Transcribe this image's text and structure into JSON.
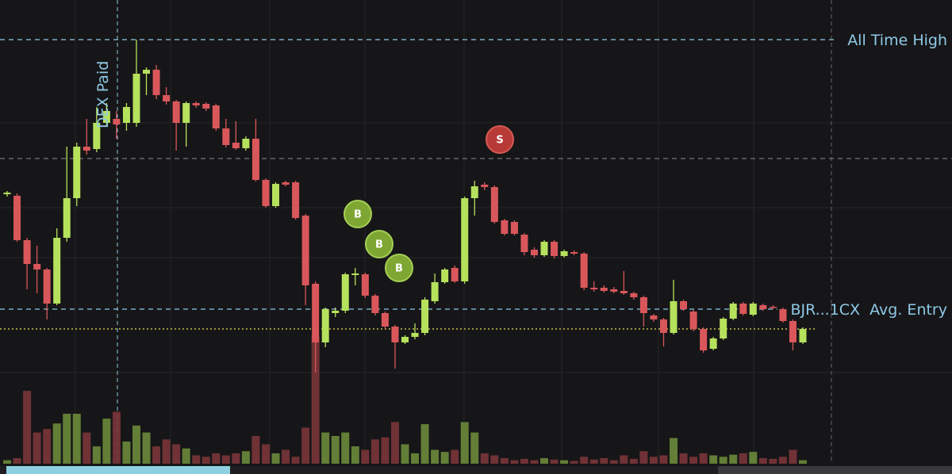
{
  "chart_data": {
    "type": "candlestick",
    "open": [
      225,
      223,
      167,
      137,
      130,
      87,
      170,
      220,
      285,
      282,
      315,
      320,
      315,
      315,
      377,
      382,
      350,
      342,
      315,
      340,
      339,
      337,
      308,
      290,
      283,
      295,
      243,
      210,
      240,
      240,
      198,
      112,
      38,
      75,
      78,
      123,
      124,
      97,
      75,
      58,
      38,
      45,
      50,
      90,
      114,
      132,
      115,
      220,
      237,
      234,
      192,
      190,
      174,
      155,
      148,
      165,
      147,
      152,
      150,
      107,
      107,
      105,
      103,
      100,
      95,
      72,
      67,
      50,
      90,
      77,
      55,
      30,
      43,
      68,
      87,
      73,
      85,
      83,
      80,
      65,
      38
    ],
    "high": [
      229,
      226,
      170,
      160,
      132,
      182,
      285,
      290,
      320,
      335,
      340,
      330,
      340,
      420,
      385,
      388,
      360,
      344,
      342,
      342,
      341,
      339,
      320,
      317,
      298,
      320,
      245,
      240,
      242,
      242,
      200,
      115,
      82,
      82,
      126,
      132,
      126,
      99,
      77,
      60,
      47,
      62,
      95,
      125,
      132,
      135,
      222,
      242,
      240,
      236,
      194,
      192,
      176,
      158,
      167,
      167,
      155,
      154,
      152,
      115,
      110,
      108,
      128,
      102,
      97,
      74,
      69,
      117,
      92,
      79,
      57,
      45,
      70,
      89,
      89,
      89,
      87,
      85,
      82,
      67,
      57
    ],
    "low": [
      222,
      165,
      105,
      100,
      67,
      85,
      165,
      210,
      275,
      278,
      310,
      295,
      305,
      310,
      350,
      345,
      338,
      280,
      285,
      334,
      330,
      305,
      284,
      281,
      280,
      241,
      208,
      208,
      235,
      193,
      85,
      0,
      32,
      70,
      75,
      110,
      94,
      72,
      55,
      5,
      36,
      42,
      47,
      87,
      112,
      113,
      112,
      198,
      230,
      188,
      173,
      173,
      148,
      145,
      146,
      144,
      145,
      148,
      104,
      102,
      101,
      100,
      98,
      92,
      58,
      64,
      33,
      48,
      78,
      52,
      25,
      28,
      41,
      66,
      72,
      71,
      78,
      80,
      63,
      28,
      36
    ],
    "close": [
      227,
      167,
      137,
      130,
      87,
      170,
      220,
      285,
      280,
      315,
      330,
      313,
      335,
      377,
      382,
      350,
      342,
      315,
      340,
      337,
      333,
      308,
      287,
      283,
      295,
      243,
      210,
      238,
      237,
      195,
      110,
      38,
      80,
      78,
      124,
      125,
      97,
      75,
      58,
      38,
      45,
      50,
      92,
      114,
      130,
      115,
      220,
      235,
      234,
      190,
      175,
      175,
      152,
      148,
      165,
      147,
      153,
      150,
      107,
      105,
      103,
      102,
      100,
      95,
      75,
      67,
      50,
      90,
      80,
      55,
      28,
      43,
      68,
      87,
      74,
      87,
      80,
      82,
      65,
      38,
      55
    ],
    "volume": [
      5,
      8,
      105,
      45,
      50,
      58,
      72,
      72,
      45,
      25,
      65,
      75,
      32,
      55,
      45,
      25,
      35,
      28,
      22,
      12,
      10,
      15,
      12,
      15,
      18,
      40,
      28,
      15,
      20,
      10,
      52,
      185,
      45,
      40,
      45,
      25,
      20,
      35,
      38,
      60,
      28,
      15,
      57,
      20,
      17,
      20,
      60,
      45,
      15,
      12,
      8,
      5,
      7,
      5,
      8,
      6,
      5,
      4,
      10,
      6,
      8,
      5,
      12,
      7,
      18,
      10,
      12,
      37,
      15,
      10,
      15,
      12,
      10,
      13,
      15,
      17,
      8,
      7,
      10,
      20,
      5
    ],
    "up_color": "#b6e15c",
    "down_color": "#d9575b",
    "vol_up_color": "#6b8a3a",
    "vol_down_color": "#7a3538",
    "ylim": [
      0,
      470
    ],
    "vol_lim": [
      0,
      120
    ],
    "levels": [
      {
        "label": "All Time High",
        "value": 420,
        "color": "#8ec9e6"
      },
      {
        "value": 270,
        "color": "#777"
      },
      {
        "label": "BJR...1CX  Avg. Entry",
        "value": 80,
        "color": "#8ec9e6"
      },
      {
        "value": 55,
        "color": "#e6e05c"
      }
    ],
    "event_label": "DEX Paid",
    "markers": [
      {
        "label": "B"
      },
      {
        "label": "B"
      },
      {
        "label": "B"
      },
      {
        "label": "S"
      }
    ]
  }
}
